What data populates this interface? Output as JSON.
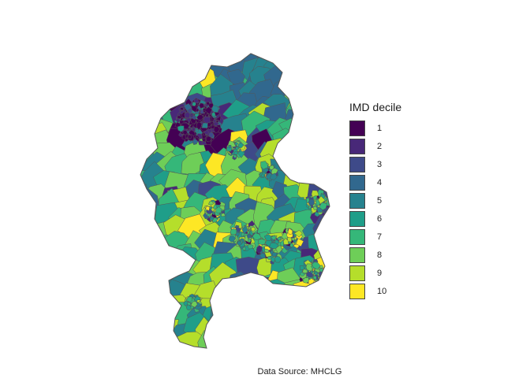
{
  "legend": {
    "title": "IMD decile",
    "items": [
      {
        "label": "1",
        "color": "#440154"
      },
      {
        "label": "2",
        "color": "#482878"
      },
      {
        "label": "3",
        "color": "#3e4a89"
      },
      {
        "label": "4",
        "color": "#31688e"
      },
      {
        "label": "5",
        "color": "#26828e"
      },
      {
        "label": "6",
        "color": "#1f9e89"
      },
      {
        "label": "7",
        "color": "#35b779"
      },
      {
        "label": "8",
        "color": "#6ece58"
      },
      {
        "label": "9",
        "color": "#b5de2b"
      },
      {
        "label": "10",
        "color": "#fde725"
      }
    ]
  },
  "caption": "Data Source: MHCLG",
  "map": {
    "boundary_color": "#555555"
  }
}
